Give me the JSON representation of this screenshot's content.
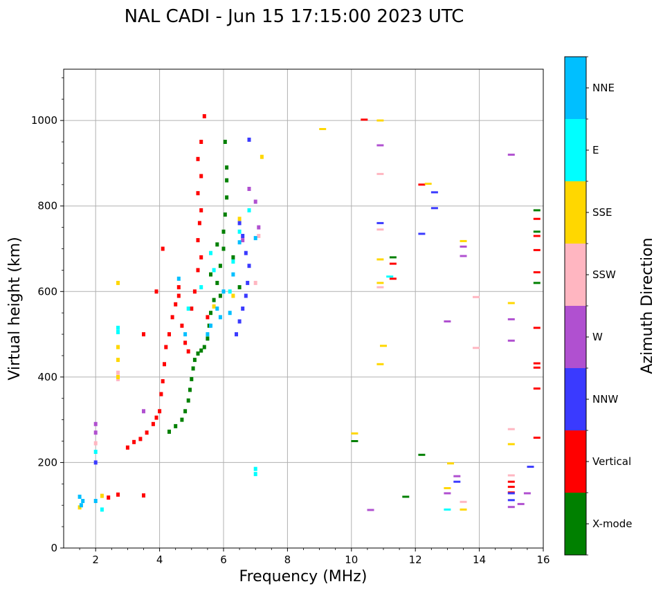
{
  "chart_data": {
    "type": "scatter",
    "title": "NAL CADI - Jun 15 17:15:00 2023 UTC",
    "xlabel": "Frequency (MHz)",
    "ylabel": "Virtual height (km)",
    "xlim": [
      1,
      16
    ],
    "ylim": [
      0,
      1120
    ],
    "xticks": [
      2,
      4,
      6,
      8,
      10,
      12,
      14,
      16
    ],
    "yticks": [
      0,
      200,
      400,
      600,
      800,
      1000
    ],
    "grid": true,
    "colorbar": {
      "label": "Azimuth Direction",
      "entries": [
        {
          "name": "X-mode",
          "color": "#008000"
        },
        {
          "name": "Vertical",
          "color": "#ff0000"
        },
        {
          "name": "NNW",
          "color": "#3a3aff"
        },
        {
          "name": "W",
          "color": "#b050d0"
        },
        {
          "name": "SSW",
          "color": "#ffb6c1"
        },
        {
          "name": "SSE",
          "color": "#ffd700"
        },
        {
          "name": "E",
          "color": "#00ffff"
        },
        {
          "name": "NNE",
          "color": "#00bfff"
        }
      ]
    },
    "series": [
      {
        "name": "X-mode",
        "color": "#008000",
        "points": [
          [
            4.3,
            272
          ],
          [
            4.5,
            285
          ],
          [
            4.7,
            300
          ],
          [
            4.8,
            320
          ],
          [
            4.9,
            345
          ],
          [
            4.95,
            370
          ],
          [
            5.0,
            395
          ],
          [
            5.05,
            420
          ],
          [
            5.1,
            440
          ],
          [
            5.2,
            455
          ],
          [
            5.3,
            462
          ],
          [
            5.4,
            470
          ],
          [
            5.5,
            490
          ],
          [
            5.55,
            520
          ],
          [
            5.6,
            550
          ],
          [
            5.7,
            580
          ],
          [
            5.8,
            620
          ],
          [
            5.9,
            660
          ],
          [
            6.0,
            700
          ],
          [
            6.0,
            740
          ],
          [
            6.05,
            780
          ],
          [
            6.1,
            820
          ],
          [
            6.1,
            860
          ],
          [
            6.1,
            890
          ],
          [
            6.05,
            950
          ],
          [
            6.5,
            610
          ],
          [
            6.3,
            680
          ],
          [
            5.9,
            590
          ],
          [
            5.6,
            640
          ],
          [
            5.8,
            710
          ],
          [
            11.3,
            680
          ],
          [
            12.2,
            218
          ],
          [
            11.7,
            120
          ],
          [
            10.1,
            250
          ],
          [
            15.8,
            790
          ],
          [
            15.8,
            740
          ],
          [
            15.8,
            620
          ]
        ]
      },
      {
        "name": "Vertical",
        "color": "#ff0000",
        "points": [
          [
            2.7,
            125
          ],
          [
            3.0,
            235
          ],
          [
            3.2,
            248
          ],
          [
            3.4,
            255
          ],
          [
            3.6,
            270
          ],
          [
            3.8,
            290
          ],
          [
            3.9,
            305
          ],
          [
            4.0,
            320
          ],
          [
            4.05,
            360
          ],
          [
            4.1,
            390
          ],
          [
            4.15,
            430
          ],
          [
            4.2,
            470
          ],
          [
            4.3,
            500
          ],
          [
            4.4,
            540
          ],
          [
            4.5,
            570
          ],
          [
            4.6,
            590
          ],
          [
            4.7,
            520
          ],
          [
            4.8,
            480
          ],
          [
            4.9,
            460
          ],
          [
            5.0,
            560
          ],
          [
            5.1,
            600
          ],
          [
            5.2,
            650
          ],
          [
            5.3,
            680
          ],
          [
            5.2,
            720
          ],
          [
            5.25,
            760
          ],
          [
            5.3,
            790
          ],
          [
            5.2,
            830
          ],
          [
            5.3,
            870
          ],
          [
            5.2,
            910
          ],
          [
            5.3,
            950
          ],
          [
            5.4,
            1010
          ],
          [
            4.1,
            700
          ],
          [
            3.9,
            600
          ],
          [
            4.6,
            610
          ],
          [
            5.5,
            540
          ],
          [
            3.5,
            500
          ],
          [
            10.4,
            1002
          ],
          [
            12.2,
            850
          ],
          [
            11.3,
            665
          ],
          [
            11.3,
            630
          ],
          [
            15.8,
            770
          ],
          [
            15.8,
            730
          ],
          [
            15.8,
            697
          ],
          [
            15.8,
            645
          ],
          [
            15.8,
            515
          ],
          [
            15.8,
            432
          ],
          [
            15.8,
            422
          ],
          [
            15.8,
            373
          ],
          [
            15.8,
            258
          ],
          [
            15.0,
            155
          ],
          [
            15.0,
            143
          ],
          [
            15.0,
            130
          ],
          [
            3.5,
            123
          ],
          [
            2.4,
            118
          ]
        ]
      },
      {
        "name": "NNW",
        "color": "#3a3aff",
        "points": [
          [
            6.4,
            500
          ],
          [
            6.5,
            530
          ],
          [
            6.6,
            560
          ],
          [
            6.7,
            590
          ],
          [
            6.75,
            620
          ],
          [
            6.8,
            660
          ],
          [
            6.7,
            690
          ],
          [
            6.6,
            730
          ],
          [
            6.5,
            760
          ],
          [
            2.0,
            200
          ],
          [
            10.9,
            760
          ],
          [
            12.6,
            832
          ],
          [
            12.6,
            795
          ],
          [
            12.2,
            735
          ],
          [
            13.3,
            155
          ],
          [
            15.0,
            128
          ],
          [
            15.0,
            112
          ],
          [
            15.6,
            190
          ],
          [
            6.8,
            955
          ]
        ]
      },
      {
        "name": "W",
        "color": "#b050d0",
        "points": [
          [
            2.0,
            270
          ],
          [
            2.0,
            290
          ],
          [
            7.1,
            750
          ],
          [
            7.0,
            810
          ],
          [
            6.8,
            840
          ],
          [
            10.9,
            942
          ],
          [
            15.0,
            920
          ],
          [
            15.0,
            535
          ],
          [
            15.0,
            485
          ],
          [
            13.0,
            530
          ],
          [
            13.5,
            705
          ],
          [
            13.5,
            683
          ],
          [
            13.3,
            168
          ],
          [
            13.0,
            128
          ],
          [
            15.0,
            96
          ],
          [
            15.5,
            128
          ],
          [
            15.3,
            103
          ],
          [
            10.6,
            89
          ],
          [
            6.6,
            720
          ],
          [
            3.5,
            320
          ]
        ]
      },
      {
        "name": "SSW",
        "color": "#ffb6c1",
        "points": [
          [
            2.7,
            410
          ],
          [
            2.7,
            395
          ],
          [
            7.1,
            730
          ],
          [
            7.0,
            620
          ],
          [
            10.9,
            875
          ],
          [
            10.9,
            745
          ],
          [
            10.9,
            610
          ],
          [
            13.9,
            587
          ],
          [
            13.9,
            468
          ],
          [
            15.0,
            278
          ],
          [
            15.0,
            170
          ],
          [
            13.5,
            108
          ],
          [
            2.0,
            245
          ]
        ]
      },
      {
        "name": "SSE",
        "color": "#ffd700",
        "points": [
          [
            2.7,
            620
          ],
          [
            2.7,
            470
          ],
          [
            2.7,
            440
          ],
          [
            2.7,
            400
          ],
          [
            9.1,
            980
          ],
          [
            10.9,
            1000
          ],
          [
            10.9,
            675
          ],
          [
            10.9,
            620
          ],
          [
            10.9,
            430
          ],
          [
            11.0,
            473
          ],
          [
            12.4,
            852
          ],
          [
            13.5,
            718
          ],
          [
            15.0,
            573
          ],
          [
            15.0,
            243
          ],
          [
            13.1,
            198
          ],
          [
            13.0,
            140
          ],
          [
            13.5,
            90
          ],
          [
            2.2,
            122
          ],
          [
            1.5,
            95
          ],
          [
            10.1,
            268
          ],
          [
            6.5,
            770
          ],
          [
            6.3,
            590
          ],
          [
            5.7,
            565
          ],
          [
            7.2,
            915
          ]
        ]
      },
      {
        "name": "E",
        "color": "#00ffff",
        "points": [
          [
            2.7,
            515
          ],
          [
            2.7,
            505
          ],
          [
            7.0,
            185
          ],
          [
            7.0,
            173
          ],
          [
            13.0,
            90
          ],
          [
            5.6,
            690
          ],
          [
            5.7,
            650
          ],
          [
            6.3,
            670
          ],
          [
            4.9,
            560
          ],
          [
            5.3,
            610
          ],
          [
            6.8,
            790
          ],
          [
            6.5,
            740
          ],
          [
            11.2,
            635
          ],
          [
            6.2,
            600
          ],
          [
            2.0,
            225
          ],
          [
            2.2,
            90
          ]
        ]
      },
      {
        "name": "NNE",
        "color": "#00bfff",
        "points": [
          [
            1.5,
            120
          ],
          [
            1.6,
            110
          ],
          [
            1.55,
            100
          ],
          [
            2.0,
            110
          ],
          [
            5.5,
            500
          ],
          [
            5.6,
            520
          ],
          [
            5.8,
            560
          ],
          [
            6.0,
            600
          ],
          [
            7.0,
            725
          ],
          [
            6.2,
            550
          ],
          [
            4.6,
            630
          ],
          [
            4.8,
            500
          ],
          [
            5.9,
            540
          ],
          [
            6.5,
            715
          ],
          [
            6.3,
            640
          ]
        ]
      }
    ]
  }
}
